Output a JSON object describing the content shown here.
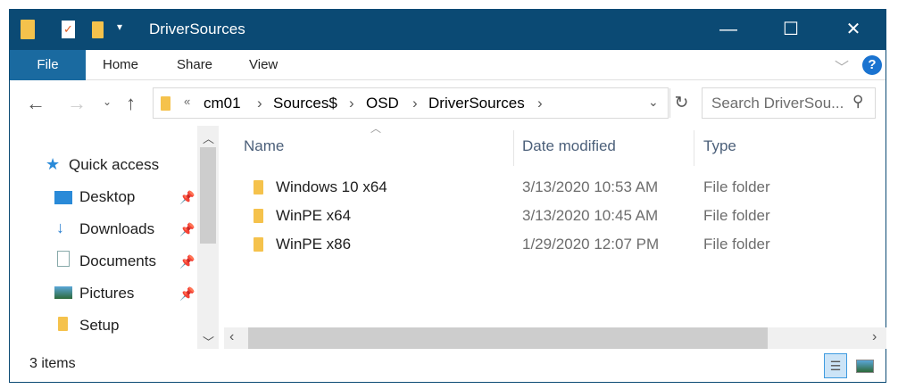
{
  "title": "DriverSources",
  "ribbon": {
    "file": "File",
    "tabs": [
      "Home",
      "Share",
      "View"
    ],
    "help": "?"
  },
  "address": {
    "overflow": "«",
    "crumbs": [
      "cm01",
      "Sources$",
      "OSD",
      "DriverSources"
    ]
  },
  "search": {
    "placeholder": "Search DriverSou..."
  },
  "nav": {
    "items": [
      {
        "label": "Quick access",
        "icon": "star-icon"
      },
      {
        "label": "Desktop",
        "icon": "desktop-icon",
        "pinned": true
      },
      {
        "label": "Downloads",
        "icon": "download-icon",
        "pinned": true
      },
      {
        "label": "Documents",
        "icon": "documents-icon",
        "pinned": true
      },
      {
        "label": "Pictures",
        "icon": "pictures-icon",
        "pinned": true
      },
      {
        "label": "Setup",
        "icon": "folder-icon",
        "pinned": false
      }
    ]
  },
  "columns": [
    "Name",
    "Date modified",
    "Type"
  ],
  "files": [
    {
      "name": "Windows 10 x64",
      "date": "3/13/2020 10:53 AM",
      "type": "File folder"
    },
    {
      "name": "WinPE x64",
      "date": "3/13/2020 10:45 AM",
      "type": "File folder"
    },
    {
      "name": "WinPE x86",
      "date": "1/29/2020 12:07 PM",
      "type": "File folder"
    }
  ],
  "status": {
    "count": "3 items"
  },
  "colors": {
    "titlebar": "#0b4a74",
    "file_tab": "#1a6aa0",
    "folder": "#f5c24c"
  }
}
